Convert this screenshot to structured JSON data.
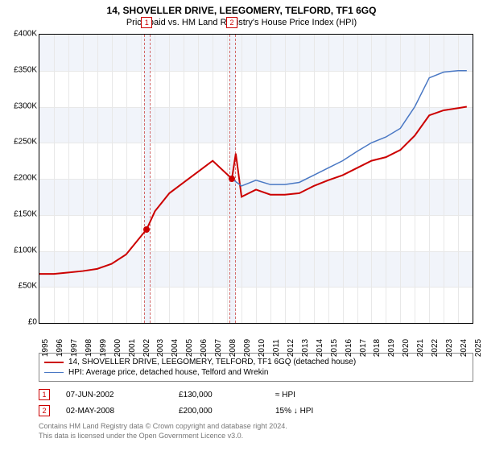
{
  "title": "14, SHOVELLER DRIVE, LEEGOMERY, TELFORD, TF1 6GQ",
  "subtitle": "Price paid vs. HM Land Registry's House Price Index (HPI)",
  "chart": {
    "type": "line",
    "background_color": "#ffffff",
    "band_color": "#f1f4fa",
    "grid_color": "#e8e8e8",
    "sale_band_color": "#eef2fa",
    "sale_dash_color": "#d36a6a",
    "xlim": [
      1995,
      2025
    ],
    "ylim": [
      0,
      400000
    ],
    "ytick_step": 50000,
    "yticks": [
      "£0",
      "£50K",
      "£100K",
      "£150K",
      "£200K",
      "£250K",
      "£300K",
      "£350K",
      "£400K"
    ],
    "xticks": [
      1995,
      1996,
      1997,
      1998,
      1999,
      2000,
      2001,
      2002,
      2003,
      2004,
      2005,
      2006,
      2007,
      2008,
      2009,
      2010,
      2011,
      2012,
      2013,
      2014,
      2015,
      2016,
      2017,
      2018,
      2019,
      2020,
      2021,
      2022,
      2023,
      2024,
      2025
    ],
    "series": [
      {
        "name": "property",
        "label": "14, SHOVELLER DRIVE, LEEGOMERY, TELFORD, TF1 6GQ (detached house)",
        "color": "#cc0000",
        "line_width": 2,
        "points": [
          [
            1995,
            68000
          ],
          [
            1996,
            68000
          ],
          [
            1997,
            70000
          ],
          [
            1998,
            72000
          ],
          [
            1999,
            75000
          ],
          [
            2000,
            82000
          ],
          [
            2001,
            95000
          ],
          [
            2002.43,
            130000
          ],
          [
            2003,
            155000
          ],
          [
            2004,
            180000
          ],
          [
            2005,
            195000
          ],
          [
            2006,
            210000
          ],
          [
            2007,
            225000
          ],
          [
            2008.33,
            200000
          ],
          [
            2008.6,
            235000
          ],
          [
            2009,
            175000
          ],
          [
            2010,
            185000
          ],
          [
            2011,
            178000
          ],
          [
            2012,
            178000
          ],
          [
            2013,
            180000
          ],
          [
            2014,
            190000
          ],
          [
            2015,
            198000
          ],
          [
            2016,
            205000
          ],
          [
            2017,
            215000
          ],
          [
            2018,
            225000
          ],
          [
            2019,
            230000
          ],
          [
            2020,
            240000
          ],
          [
            2021,
            260000
          ],
          [
            2022,
            288000
          ],
          [
            2023,
            295000
          ],
          [
            2024,
            298000
          ],
          [
            2024.6,
            300000
          ]
        ]
      },
      {
        "name": "hpi",
        "label": "HPI: Average price, detached house, Telford and Wrekin",
        "color": "#4a78c4",
        "line_width": 1.5,
        "points": [
          [
            2008.33,
            200000
          ],
          [
            2009,
            190000
          ],
          [
            2010,
            198000
          ],
          [
            2011,
            192000
          ],
          [
            2012,
            192000
          ],
          [
            2013,
            195000
          ],
          [
            2014,
            205000
          ],
          [
            2015,
            215000
          ],
          [
            2016,
            225000
          ],
          [
            2017,
            238000
          ],
          [
            2018,
            250000
          ],
          [
            2019,
            258000
          ],
          [
            2020,
            270000
          ],
          [
            2021,
            300000
          ],
          [
            2022,
            340000
          ],
          [
            2023,
            348000
          ],
          [
            2024,
            350000
          ],
          [
            2024.6,
            350000
          ]
        ]
      }
    ],
    "sales": [
      {
        "n": "1",
        "x": 2002.43,
        "price": 130000,
        "date": "07-JUN-2002",
        "price_label": "£130,000",
        "hpi_label": "≈ HPI"
      },
      {
        "n": "2",
        "x": 2008.33,
        "price": 200000,
        "date": "02-MAY-2008",
        "price_label": "£200,000",
        "hpi_label": "15% ↓ HPI"
      }
    ],
    "sale_dot_color": "#cc0000",
    "sale_band_width_years": 0.35
  },
  "legend": {
    "border_color": "#888888"
  },
  "footer": {
    "line1": "Contains HM Land Registry data © Crown copyright and database right 2024.",
    "line2": "This data is licensed under the Open Government Licence v3.0."
  }
}
